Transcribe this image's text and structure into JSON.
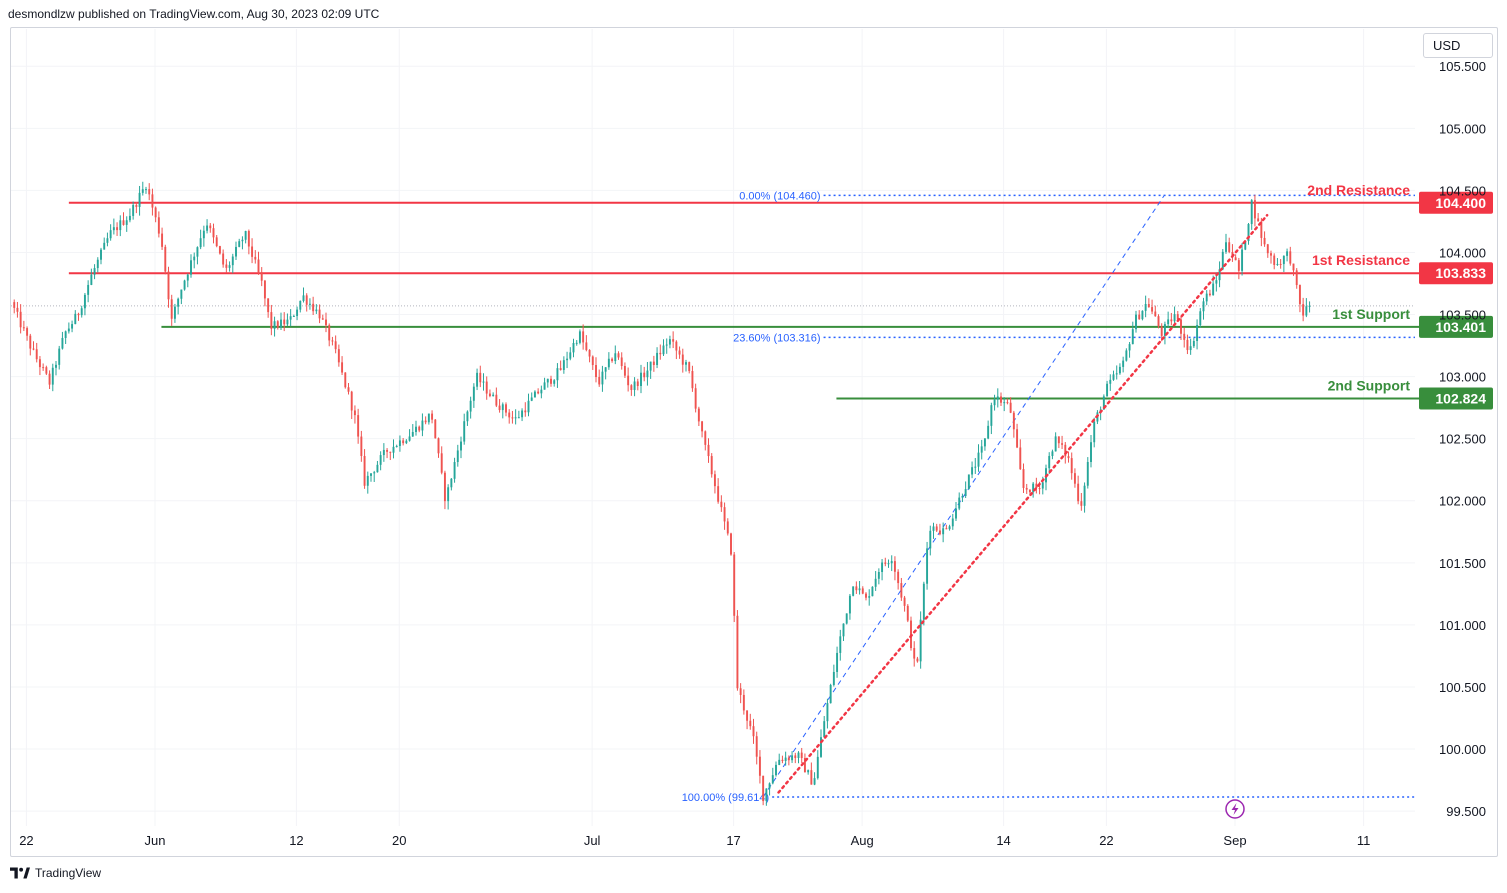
{
  "header": {
    "text": "desmondlzw published on TradingView.com, Aug 30, 2023 02:09 UTC"
  },
  "currency": "USD",
  "footer": {
    "brand": "TradingView"
  },
  "colors": {
    "up": "#26a69a",
    "down": "#ef5350",
    "resistance": "#f23645",
    "support": "#388e3c",
    "fib": "#2962ff",
    "trend": "#f23645",
    "event": "#9c27b0"
  },
  "chart_data": {
    "type": "candlestick",
    "title": "",
    "ylim": [
      99.38,
      105.8
    ],
    "y_ticks": [
      "105.500",
      "105.000",
      "104.500",
      "104.000",
      "103.500",
      "103.000",
      "102.500",
      "102.000",
      "101.500",
      "101.000",
      "100.500",
      "100.000",
      "99.500"
    ],
    "y_tick_values": [
      105.5,
      105.0,
      104.5,
      104.0,
      103.5,
      103.0,
      102.5,
      102.0,
      101.5,
      101.0,
      100.5,
      100.0,
      99.5
    ],
    "x_ticks": [
      "22",
      "Jun",
      "12",
      "20",
      "Jul",
      "17",
      "Aug",
      "14",
      "22",
      "Sep",
      "11"
    ],
    "x_tick_days": [
      0,
      10,
      21,
      29,
      44,
      55,
      65,
      76,
      84,
      94,
      104
    ],
    "x_range_days": [
      -1.2,
      108
    ],
    "current_price": 103.57,
    "levels": [
      {
        "label": "2nd Resistance",
        "value": 104.4,
        "value_text": "104.400",
        "kind": "resistance",
        "start_day": 3.3
      },
      {
        "label": "1st Resistance",
        "value": 103.833,
        "value_text": "103.833",
        "kind": "resistance",
        "start_day": 3.3
      },
      {
        "label": "1st Support",
        "value": 103.401,
        "value_text": "103.401",
        "kind": "support",
        "start_day": 10.5
      },
      {
        "label": "2nd Support",
        "value": 102.824,
        "value_text": "102.824",
        "kind": "support",
        "start_day": 63
      }
    ],
    "fib_levels": [
      {
        "label": "0.00% (104.460)",
        "value": 104.46,
        "start_day": 62
      },
      {
        "label": "23.60% (103.316)",
        "value": 103.316,
        "start_day": 62
      },
      {
        "label": "100.00% (99.614)",
        "value": 99.614,
        "start_day": 58
      }
    ],
    "fib_line": {
      "from": [
        57.3,
        99.614
      ],
      "to": [
        88.5,
        104.46
      ]
    },
    "trendline": {
      "from": [
        58.5,
        99.65
      ],
      "to": [
        96.5,
        104.3
      ]
    },
    "event_day": 94,
    "keypoints": [
      [
        -1.2,
        103.6
      ],
      [
        0.5,
        103.2
      ],
      [
        1.8,
        102.95
      ],
      [
        3,
        103.35
      ],
      [
        4,
        103.5
      ],
      [
        5,
        103.8
      ],
      [
        6.5,
        104.15
      ],
      [
        8,
        104.3
      ],
      [
        9.3,
        104.55
      ],
      [
        10.5,
        104.1
      ],
      [
        11.3,
        103.45
      ],
      [
        12,
        103.7
      ],
      [
        14,
        104.25
      ],
      [
        15.5,
        103.85
      ],
      [
        17,
        104.15
      ],
      [
        18.3,
        103.75
      ],
      [
        19,
        103.4
      ],
      [
        20.5,
        103.45
      ],
      [
        21.5,
        103.65
      ],
      [
        22.8,
        103.5
      ],
      [
        24,
        103.2
      ],
      [
        25.5,
        102.7
      ],
      [
        26.3,
        102.15
      ],
      [
        28,
        102.4
      ],
      [
        30,
        102.55
      ],
      [
        31.5,
        102.7
      ],
      [
        32.6,
        102.0
      ],
      [
        34,
        102.6
      ],
      [
        35,
        103.0
      ],
      [
        36.5,
        102.8
      ],
      [
        38,
        102.65
      ],
      [
        40,
        102.9
      ],
      [
        41.5,
        103.05
      ],
      [
        43,
        103.35
      ],
      [
        44.5,
        102.95
      ],
      [
        45.8,
        103.2
      ],
      [
        47,
        102.9
      ],
      [
        48.3,
        103.05
      ],
      [
        50,
        103.3
      ],
      [
        51.5,
        103.05
      ],
      [
        52.6,
        102.5
      ],
      [
        53.5,
        102.15
      ],
      [
        54.8,
        101.6
      ],
      [
        55.3,
        100.5
      ],
      [
        56.5,
        100.1
      ],
      [
        57.3,
        99.62
      ],
      [
        58.5,
        99.92
      ],
      [
        60,
        99.95
      ],
      [
        61.2,
        99.72
      ],
      [
        62,
        100.2
      ],
      [
        63.2,
        100.85
      ],
      [
        64.3,
        101.35
      ],
      [
        65.3,
        101.2
      ],
      [
        66.3,
        101.45
      ],
      [
        67.3,
        101.55
      ],
      [
        68.4,
        101.1
      ],
      [
        69.2,
        100.6
      ],
      [
        70.2,
        101.8
      ],
      [
        71.5,
        101.75
      ],
      [
        72.7,
        102.05
      ],
      [
        74.5,
        102.45
      ],
      [
        75.2,
        102.85
      ],
      [
        76.5,
        102.75
      ],
      [
        77.5,
        102.1
      ],
      [
        78.8,
        102.1
      ],
      [
        80,
        102.5
      ],
      [
        81,
        102.35
      ],
      [
        82,
        101.95
      ],
      [
        83,
        102.6
      ],
      [
        84,
        102.9
      ],
      [
        85.3,
        103.1
      ],
      [
        86.2,
        103.45
      ],
      [
        87.2,
        103.6
      ],
      [
        88.3,
        103.35
      ],
      [
        89.3,
        103.5
      ],
      [
        90.5,
        103.2
      ],
      [
        91.5,
        103.6
      ],
      [
        92.5,
        103.75
      ],
      [
        93.3,
        104.1
      ],
      [
        94.3,
        103.85
      ],
      [
        95.3,
        104.4
      ],
      [
        96.3,
        104.05
      ],
      [
        97.2,
        103.9
      ],
      [
        98.2,
        104.0
      ],
      [
        99.2,
        103.5
      ],
      [
        99.8,
        103.57
      ]
    ]
  }
}
